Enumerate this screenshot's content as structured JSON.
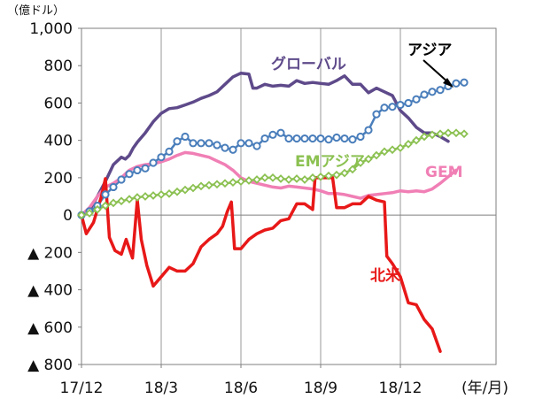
{
  "chart_data": {
    "type": "line",
    "title": "",
    "xlabel": "",
    "ylabel": "",
    "y_unit_label": "（億ドル）",
    "x_unit_label": "(年/月)",
    "ylim": [
      -800,
      1000
    ],
    "y_ticks": [
      {
        "value": 1000,
        "label": "1,000"
      },
      {
        "value": 800,
        "label": "800"
      },
      {
        "value": 600,
        "label": "600"
      },
      {
        "value": 400,
        "label": "400"
      },
      {
        "value": 200,
        "label": "200"
      },
      {
        "value": 0,
        "label": "0"
      },
      {
        "value": -200,
        "label": "▲ 200"
      },
      {
        "value": -400,
        "label": "▲ 400"
      },
      {
        "value": -600,
        "label": "▲ 600"
      },
      {
        "value": -800,
        "label": "▲ 800"
      }
    ],
    "xlim": [
      0,
      52
    ],
    "x_ticks": [
      {
        "value": 0,
        "label": "17/12"
      },
      {
        "value": 10,
        "label": "18/3"
      },
      {
        "value": 20,
        "label": "18/6"
      },
      {
        "value": 30,
        "label": "18/9"
      },
      {
        "value": 40,
        "label": "18/12"
      }
    ],
    "grid": "vertical",
    "legend": "inline labels",
    "series": [
      {
        "name": "グローバル",
        "color": "#5e4a8a",
        "marker": "none",
        "label_color": "#5e4a8a",
        "points": [
          [
            0,
            0
          ],
          [
            1,
            25
          ],
          [
            2,
            100
          ],
          [
            3,
            180
          ],
          [
            4,
            270
          ],
          [
            5,
            310
          ],
          [
            5.5,
            300
          ],
          [
            6,
            320
          ],
          [
            6.5,
            360
          ],
          [
            7,
            390
          ],
          [
            8,
            440
          ],
          [
            9,
            500
          ],
          [
            10,
            545
          ],
          [
            11,
            570
          ],
          [
            12,
            575
          ],
          [
            13,
            590
          ],
          [
            14,
            605
          ],
          [
            15,
            625
          ],
          [
            16,
            640
          ],
          [
            17,
            660
          ],
          [
            18,
            700
          ],
          [
            19,
            740
          ],
          [
            20,
            760
          ],
          [
            21,
            755
          ],
          [
            21.5,
            680
          ],
          [
            22,
            680
          ],
          [
            23,
            700
          ],
          [
            24,
            690
          ],
          [
            25,
            695
          ],
          [
            26,
            690
          ],
          [
            27,
            720
          ],
          [
            28,
            705
          ],
          [
            29,
            710
          ],
          [
            30,
            705
          ],
          [
            31,
            700
          ],
          [
            32,
            720
          ],
          [
            33,
            745
          ],
          [
            34,
            700
          ],
          [
            35,
            700
          ],
          [
            36,
            655
          ],
          [
            37,
            680
          ],
          [
            38,
            660
          ],
          [
            39,
            640
          ],
          [
            40,
            560
          ],
          [
            41,
            520
          ],
          [
            42,
            470
          ],
          [
            43,
            440
          ],
          [
            44,
            440
          ],
          [
            45,
            420
          ],
          [
            46,
            395
          ]
        ]
      },
      {
        "name": "アジア",
        "color": "#4a7ebb",
        "marker": "circle",
        "label_color": "#000000",
        "points": [
          [
            0,
            0
          ],
          [
            1,
            20
          ],
          [
            2,
            50
          ],
          [
            3,
            110
          ],
          [
            4,
            150
          ],
          [
            5,
            190
          ],
          [
            6,
            220
          ],
          [
            7,
            240
          ],
          [
            8,
            250
          ],
          [
            9,
            280
          ],
          [
            10,
            310
          ],
          [
            11,
            340
          ],
          [
            12,
            395
          ],
          [
            13,
            420
          ],
          [
            14,
            385
          ],
          [
            15,
            385
          ],
          [
            16,
            385
          ],
          [
            17,
            375
          ],
          [
            18,
            360
          ],
          [
            19,
            350
          ],
          [
            20,
            385
          ],
          [
            21,
            385
          ],
          [
            22,
            370
          ],
          [
            23,
            410
          ],
          [
            24,
            430
          ],
          [
            25,
            440
          ],
          [
            26,
            410
          ],
          [
            27,
            410
          ],
          [
            28,
            410
          ],
          [
            29,
            410
          ],
          [
            30,
            410
          ],
          [
            31,
            405
          ],
          [
            32,
            415
          ],
          [
            33,
            410
          ],
          [
            34,
            405
          ],
          [
            35,
            420
          ],
          [
            36,
            455
          ],
          [
            37,
            540
          ],
          [
            38,
            575
          ],
          [
            39,
            580
          ],
          [
            40,
            590
          ],
          [
            41,
            600
          ],
          [
            42,
            620
          ],
          [
            43,
            645
          ],
          [
            44,
            660
          ],
          [
            45,
            670
          ],
          [
            46,
            690
          ],
          [
            47,
            705
          ],
          [
            48,
            710
          ]
        ]
      },
      {
        "name": "EMアジア",
        "color": "#8cc152",
        "marker": "diamond",
        "label_color": "#8cc152",
        "points": [
          [
            0,
            0
          ],
          [
            1,
            10
          ],
          [
            2,
            30
          ],
          [
            3,
            50
          ],
          [
            4,
            65
          ],
          [
            5,
            75
          ],
          [
            6,
            85
          ],
          [
            7,
            95
          ],
          [
            8,
            100
          ],
          [
            9,
            105
          ],
          [
            10,
            110
          ],
          [
            11,
            115
          ],
          [
            12,
            125
          ],
          [
            13,
            135
          ],
          [
            14,
            145
          ],
          [
            15,
            155
          ],
          [
            16,
            160
          ],
          [
            17,
            165
          ],
          [
            18,
            170
          ],
          [
            19,
            175
          ],
          [
            20,
            180
          ],
          [
            21,
            185
          ],
          [
            22,
            190
          ],
          [
            23,
            200
          ],
          [
            24,
            200
          ],
          [
            25,
            195
          ],
          [
            26,
            190
          ],
          [
            27,
            195
          ],
          [
            28,
            190
          ],
          [
            29,
            200
          ],
          [
            30,
            205
          ],
          [
            31,
            210
          ],
          [
            32,
            215
          ],
          [
            33,
            225
          ],
          [
            34,
            245
          ],
          [
            35,
            280
          ],
          [
            36,
            300
          ],
          [
            37,
            320
          ],
          [
            38,
            340
          ],
          [
            39,
            350
          ],
          [
            40,
            360
          ],
          [
            41,
            380
          ],
          [
            42,
            400
          ],
          [
            43,
            420
          ],
          [
            44,
            430
          ],
          [
            45,
            435
          ],
          [
            46,
            440
          ],
          [
            47,
            440
          ],
          [
            48,
            435
          ]
        ]
      },
      {
        "name": "GEM",
        "color": "#f07fb5",
        "marker": "none",
        "label_color": "#f07fb5",
        "points": [
          [
            0,
            0
          ],
          [
            1,
            40
          ],
          [
            2,
            100
          ],
          [
            3,
            150
          ],
          [
            4,
            170
          ],
          [
            5,
            200
          ],
          [
            6,
            240
          ],
          [
            7,
            260
          ],
          [
            8,
            270
          ],
          [
            9,
            275
          ],
          [
            10,
            285
          ],
          [
            11,
            300
          ],
          [
            12,
            320
          ],
          [
            13,
            335
          ],
          [
            14,
            330
          ],
          [
            15,
            320
          ],
          [
            16,
            310
          ],
          [
            17,
            290
          ],
          [
            18,
            270
          ],
          [
            19,
            240
          ],
          [
            20,
            200
          ],
          [
            21,
            180
          ],
          [
            22,
            170
          ],
          [
            23,
            160
          ],
          [
            24,
            150
          ],
          [
            25,
            145
          ],
          [
            26,
            155
          ],
          [
            27,
            150
          ],
          [
            28,
            145
          ],
          [
            29,
            140
          ],
          [
            30,
            130
          ],
          [
            31,
            115
          ],
          [
            32,
            115
          ],
          [
            33,
            110
          ],
          [
            34,
            100
          ],
          [
            35,
            90
          ],
          [
            36,
            105
          ],
          [
            37,
            110
          ],
          [
            38,
            115
          ],
          [
            39,
            120
          ],
          [
            40,
            130
          ],
          [
            41,
            125
          ],
          [
            42,
            130
          ],
          [
            43,
            125
          ],
          [
            44,
            140
          ],
          [
            45,
            170
          ],
          [
            46,
            205
          ],
          [
            47,
            240
          ]
        ]
      },
      {
        "name": "北米",
        "color": "#e81818",
        "marker": "none",
        "label_color": "#e81818",
        "points": [
          [
            0,
            0
          ],
          [
            0.6,
            -100
          ],
          [
            1.5,
            -40
          ],
          [
            2.5,
            100
          ],
          [
            3,
            195
          ],
          [
            3.5,
            -120
          ],
          [
            4.2,
            -190
          ],
          [
            5,
            -210
          ],
          [
            5.6,
            -130
          ],
          [
            6.4,
            -230
          ],
          [
            7,
            80
          ],
          [
            7.5,
            -130
          ],
          [
            8.2,
            -270
          ],
          [
            9,
            -380
          ],
          [
            10,
            -330
          ],
          [
            11,
            -280
          ],
          [
            12,
            -300
          ],
          [
            13,
            -300
          ],
          [
            14,
            -260
          ],
          [
            15,
            -170
          ],
          [
            16,
            -130
          ],
          [
            17,
            -100
          ],
          [
            17.7,
            -60
          ],
          [
            18.3,
            20
          ],
          [
            18.8,
            70
          ],
          [
            19.2,
            -180
          ],
          [
            20,
            -180
          ],
          [
            21,
            -130
          ],
          [
            22,
            -100
          ],
          [
            23,
            -80
          ],
          [
            24,
            -70
          ],
          [
            25,
            -30
          ],
          [
            26,
            -20
          ],
          [
            27,
            60
          ],
          [
            28,
            60
          ],
          [
            29,
            30
          ],
          [
            29.3,
            200
          ],
          [
            30,
            200
          ],
          [
            31,
            200
          ],
          [
            31.5,
            200
          ],
          [
            32,
            40
          ],
          [
            33,
            40
          ],
          [
            34,
            60
          ],
          [
            35,
            60
          ],
          [
            35.5,
            80
          ],
          [
            36,
            100
          ],
          [
            37,
            80
          ],
          [
            38,
            70
          ],
          [
            38.3,
            -220
          ],
          [
            39,
            -260
          ],
          [
            40,
            -330
          ],
          [
            41,
            -470
          ],
          [
            42,
            -480
          ],
          [
            43,
            -560
          ],
          [
            44,
            -610
          ],
          [
            45,
            -730
          ]
        ]
      }
    ]
  }
}
